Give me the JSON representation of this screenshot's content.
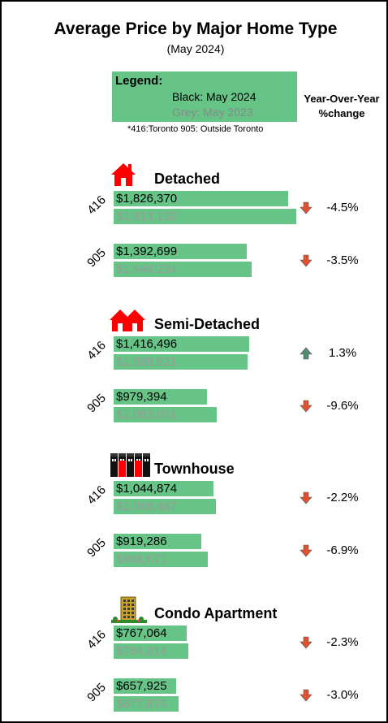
{
  "header": {
    "title": "Average Price by Major Home Type",
    "subtitle": "(May 2024)"
  },
  "legend": {
    "title": "Legend:",
    "current": "Black: May 2024",
    "previous": "Grey:  May 2023",
    "note": "*416:Toronto  905: Outside Toronto"
  },
  "yoy_header": [
    "Year-Over-Year",
    "%change"
  ],
  "colors": {
    "bar": "#66c487",
    "current_text": "#000000",
    "previous_text": "#9a9a9a",
    "down_arrow": "#e0522f",
    "up_arrow": "#4f8f70",
    "icon_red": "#ff0000"
  },
  "chart_data": {
    "type": "bar",
    "title": "Average Price by Major Home Type",
    "subtitle": "(May 2024)",
    "series": [
      {
        "name": "May 2024"
      },
      {
        "name": "May 2023"
      }
    ],
    "groups": [
      {
        "type": "Detached",
        "icon": "house-icon",
        "rows": [
          {
            "region": "416",
            "current": 1826370,
            "current_label": "$1,826,370",
            "previous": 1913132,
            "previous_label": "$1,913,132",
            "change": "-4.5%",
            "direction": "down"
          },
          {
            "region": "905",
            "current": 1392699,
            "current_label": "$1,392,699",
            "previous": 1444234,
            "previous_label": "$1,444,234",
            "change": "-3.5%",
            "direction": "down"
          }
        ]
      },
      {
        "type": "Semi-Detached",
        "icon": "semi-detached-house-icon",
        "rows": [
          {
            "region": "416",
            "current": 1416496,
            "current_label": "$1,416,496",
            "previous": 1398821,
            "previous_label": "$1,398,821",
            "change": "1.3%",
            "direction": "up"
          },
          {
            "region": "905",
            "current": 979394,
            "current_label": "$979,394",
            "previous": 1083651,
            "previous_label": "$1,083,651",
            "change": "-9.6%",
            "direction": "down"
          }
        ]
      },
      {
        "type": "Townhouse",
        "icon": "townhouse-icon",
        "rows": [
          {
            "region": "416",
            "current": 1044874,
            "current_label": "$1,044,874",
            "previous": 1068487,
            "previous_label": "$1,068,487",
            "change": "-2.2%",
            "direction": "down"
          },
          {
            "region": "905",
            "current": 919286,
            "current_label": "$919,286",
            "previous": 986671,
            "previous_label": "$986,671",
            "change": "-6.9%",
            "direction": "down"
          }
        ]
      },
      {
        "type": "Condo Apartment",
        "icon": "condo-building-icon",
        "rows": [
          {
            "region": "416",
            "current": 767064,
            "current_label": "$767,064",
            "previous": 784914,
            "previous_label": "$784,914",
            "change": "-2.3%",
            "direction": "down"
          },
          {
            "region": "905",
            "current": 657925,
            "current_label": "$657,925",
            "previous": 677874,
            "previous_label": "$677,874",
            "change": "-3.0%",
            "direction": "down"
          }
        ]
      }
    ],
    "x_range": [
      0,
      1913132
    ],
    "grid": false,
    "legend_position": "top-center"
  }
}
